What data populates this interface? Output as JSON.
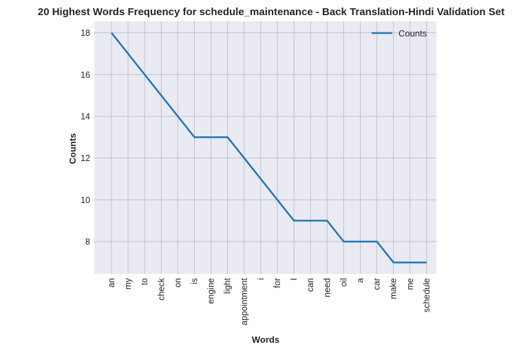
{
  "chart_data": {
    "type": "line",
    "title": "20 Highest Words Frequency for schedule_maintenance - Back Translation-Hindi Validation Set",
    "xlabel": "Words",
    "ylabel": "Counts",
    "categories": [
      "an",
      "my",
      "to",
      "check",
      "on",
      "is",
      "engine",
      "light",
      "appointment",
      "i",
      "for",
      "I",
      "can",
      "need",
      "oil",
      "a",
      "car",
      "make",
      "me",
      "schedule"
    ],
    "series": [
      {
        "name": "Counts",
        "values": [
          18,
          17,
          16,
          15,
          14,
          13,
          13,
          13,
          12,
          11,
          10,
          9,
          9,
          9,
          8,
          8,
          8,
          7,
          7,
          7
        ],
        "color": "#1f77b4"
      }
    ],
    "yticks": [
      8,
      10,
      12,
      14,
      16,
      18
    ],
    "ylim": [
      6.45,
      18.55
    ],
    "grid": true,
    "legend_position": "top-right",
    "background_color": "#eaeaf2",
    "grid_color": "#c0c0c6"
  }
}
